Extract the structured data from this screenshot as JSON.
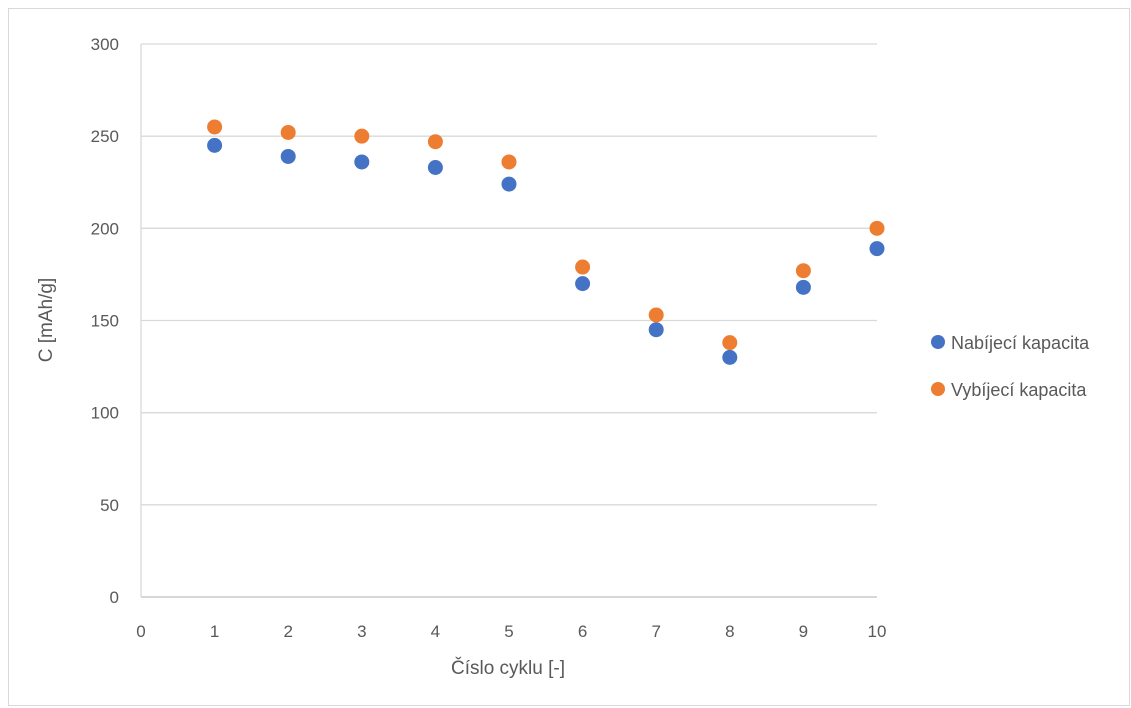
{
  "chart_data": {
    "type": "scatter",
    "xlabel": "Číslo cyklu [-]",
    "ylabel": "C [mAh/g]",
    "xlim": [
      0,
      10
    ],
    "ylim": [
      0,
      300
    ],
    "x_ticks": [
      "0",
      "1",
      "2",
      "3",
      "4",
      "5",
      "6",
      "7",
      "8",
      "9",
      "10"
    ],
    "y_ticks": [
      "0",
      "50",
      "100",
      "150",
      "200",
      "250",
      "300"
    ],
    "grid": "horizontal",
    "legend": "right",
    "series": [
      {
        "name": "Nabíjecí kapacita",
        "color": "#4472C4",
        "x": [
          1,
          2,
          3,
          4,
          5,
          6,
          7,
          8,
          9,
          10
        ],
        "y": [
          245,
          239,
          236,
          233,
          224,
          170,
          145,
          130,
          168,
          189
        ]
      },
      {
        "name": "Vybíjecí kapacita",
        "color": "#ED7D31",
        "x": [
          1,
          2,
          3,
          4,
          5,
          6,
          7,
          8,
          9,
          10
        ],
        "y": [
          255,
          252,
          250,
          247,
          236,
          179,
          153,
          138,
          177,
          200
        ]
      }
    ]
  }
}
